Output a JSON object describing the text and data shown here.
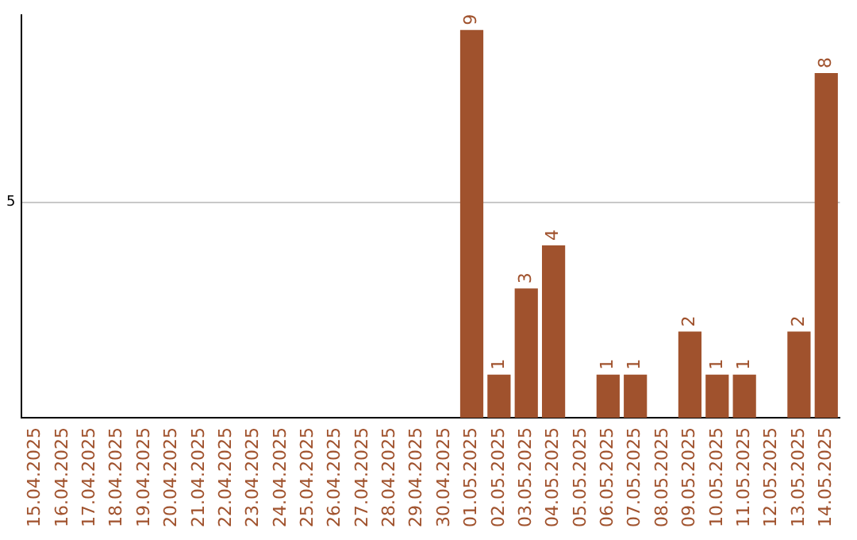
{
  "chart_data": {
    "type": "bar",
    "categories": [
      "15.04.2025",
      "16.04.2025",
      "17.04.2025",
      "18.04.2025",
      "19.04.2025",
      "20.04.2025",
      "21.04.2025",
      "22.04.2025",
      "23.04.2025",
      "24.04.2025",
      "25.04.2025",
      "26.04.2025",
      "27.04.2025",
      "28.04.2025",
      "29.04.2025",
      "30.04.2025",
      "01.05.2025",
      "02.05.2025",
      "03.05.2025",
      "04.05.2025",
      "05.05.2025",
      "06.05.2025",
      "07.05.2025",
      "08.05.2025",
      "09.05.2025",
      "10.05.2025",
      "11.05.2025",
      "12.05.2025",
      "13.05.2025",
      "14.05.2025"
    ],
    "values": [
      null,
      null,
      null,
      null,
      null,
      null,
      null,
      null,
      null,
      null,
      null,
      null,
      null,
      null,
      null,
      null,
      9,
      1,
      3,
      4,
      null,
      1,
      1,
      null,
      2,
      1,
      1,
      null,
      2,
      8
    ],
    "color": "#a0522d",
    "ylim": [
      0,
      9.35
    ],
    "yticks": [
      5
    ],
    "grid": "y",
    "data_labels": true,
    "legend": false
  }
}
